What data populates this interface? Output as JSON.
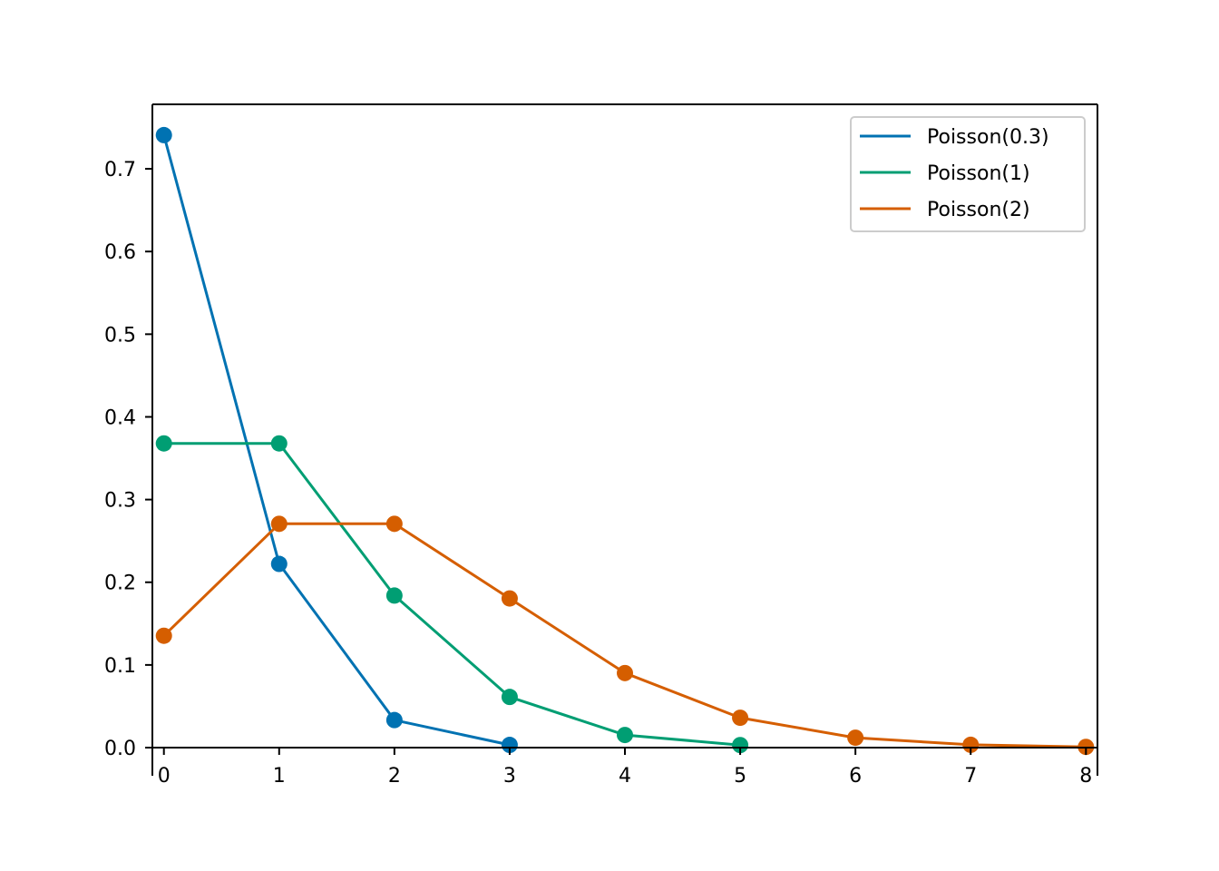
{
  "chart_data": {
    "type": "line",
    "title": "",
    "xlabel": "",
    "ylabel": "",
    "xlim": [
      -0.1,
      8.1
    ],
    "ylim": [
      -0.034,
      0.778
    ],
    "xticks": [
      0,
      1,
      2,
      3,
      4,
      5,
      6,
      7,
      8
    ],
    "xtick_labels": [
      "0",
      "1",
      "2",
      "3",
      "4",
      "5",
      "6",
      "7",
      "8"
    ],
    "yticks": [
      0,
      0.1,
      0.2,
      0.3,
      0.4,
      0.5,
      0.6,
      0.7
    ],
    "ytick_labels": [
      "0.0",
      "0.1",
      "0.2",
      "0.3",
      "0.4",
      "0.5",
      "0.6",
      "0.7"
    ],
    "grid": false,
    "markers": true,
    "legend_position": "top-right",
    "series": [
      {
        "name": "Poisson(0.3)",
        "color": "#0072b2",
        "x": [
          0,
          1,
          2,
          3
        ],
        "values": [
          0.7408,
          0.2222,
          0.0333,
          0.0033
        ]
      },
      {
        "name": "Poisson(1)",
        "color": "#009e73",
        "x": [
          0,
          1,
          2,
          3,
          4,
          5
        ],
        "values": [
          0.3679,
          0.3679,
          0.1839,
          0.0613,
          0.0153,
          0.0031
        ]
      },
      {
        "name": "Poisson(2)",
        "color": "#d55e00",
        "x": [
          0,
          1,
          2,
          3,
          4,
          5,
          6,
          7,
          8
        ],
        "values": [
          0.1353,
          0.2707,
          0.2707,
          0.1804,
          0.0902,
          0.0361,
          0.012,
          0.0034,
          0.0009
        ]
      }
    ]
  }
}
